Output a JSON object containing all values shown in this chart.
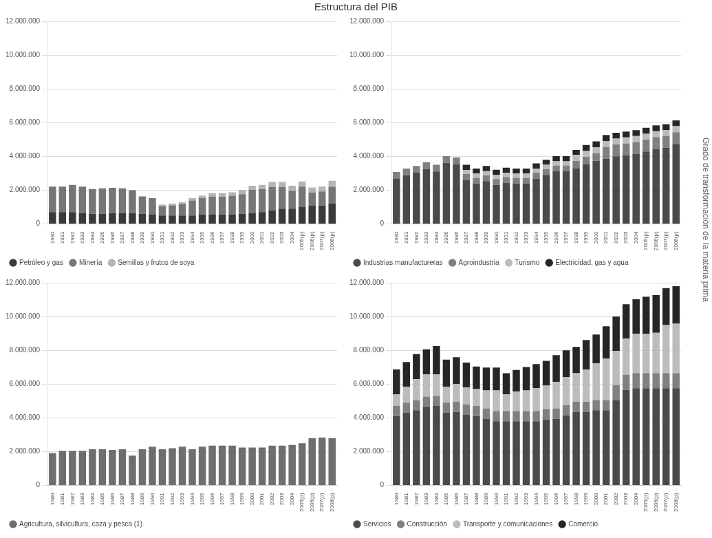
{
  "chart_data": [
    {
      "type": "bar",
      "title": "Estructura del PIB",
      "stacked": true,
      "grid": "y",
      "legend": "bottom left",
      "categories": [
        "1980",
        "1981",
        "1982",
        "1983",
        "1984",
        "1985",
        "1986",
        "1987",
        "1988",
        "1989",
        "1990",
        "1991",
        "1992",
        "1993",
        "1994",
        "1995",
        "1996",
        "1997",
        "1998",
        "1999",
        "2000",
        "2001",
        "2002",
        "2003",
        "2004",
        "2005(p)",
        "2006(p)",
        "2007(p)",
        "2008(p)"
      ],
      "ylim": [
        0,
        12000000
      ],
      "yticks": [
        {
          "value": 0,
          "label": "0"
        },
        {
          "value": 2000000,
          "label": "2.000.000"
        },
        {
          "value": 4000000,
          "label": "4.000.000"
        },
        {
          "value": 6000000,
          "label": "6.000.000"
        },
        {
          "value": 8000000,
          "label": "8.000.000"
        },
        {
          "value": 10000000,
          "label": "10.000.000"
        },
        {
          "value": 12000000,
          "label": "12.000.000"
        }
      ],
      "series": [
        {
          "name": "Petróleo y gas",
          "color": "#3a3a3a",
          "values": [
            700000,
            700000,
            700000,
            650000,
            600000,
            600000,
            650000,
            650000,
            650000,
            600000,
            550000,
            500000,
            500000,
            500000,
            500000,
            550000,
            550000,
            550000,
            550000,
            600000,
            650000,
            700000,
            800000,
            900000,
            900000,
            1000000,
            1100000,
            1100000,
            1200000
          ]
        },
        {
          "name": "Minería",
          "color": "#767676",
          "values": [
            1510000,
            1510000,
            1610000,
            1560000,
            1470000,
            1510000,
            1490000,
            1460000,
            1340000,
            1030000,
            980000,
            540000,
            600000,
            680000,
            880000,
            980000,
            1070000,
            1070000,
            1120000,
            1160000,
            1360000,
            1360000,
            1380000,
            1280000,
            1060000,
            1210000,
            760000,
            820000,
            1000000
          ]
        },
        {
          "name": "Semillas y frutos de soya",
          "color": "#b4b4b4",
          "values": [
            null,
            null,
            null,
            null,
            null,
            null,
            null,
            null,
            null,
            null,
            null,
            100000,
            100000,
            100000,
            150000,
            150000,
            200000,
            200000,
            200000,
            250000,
            250000,
            250000,
            300000,
            300000,
            300000,
            300000,
            300000,
            300000,
            350000
          ]
        }
      ]
    },
    {
      "type": "bar",
      "stacked": true,
      "grid": "y",
      "legend": "bottom left",
      "annotations": [
        "Grado de transformación de la materia prima"
      ],
      "categories": [
        "1980",
        "1981",
        "1982",
        "1983",
        "1984",
        "1985",
        "1986",
        "1987",
        "1988",
        "1989",
        "1990",
        "1991",
        "1992",
        "1993",
        "1994",
        "1995",
        "1996",
        "1997",
        "1998",
        "1999",
        "2000",
        "2001",
        "2002",
        "2003",
        "2004",
        "2005(p)",
        "2006(p)",
        "2007(p)",
        "2008(p)"
      ],
      "ylim": [
        0,
        12000000
      ],
      "yticks": [
        {
          "value": 0,
          "label": "0"
        },
        {
          "value": 2000000,
          "label": "2.000.000"
        },
        {
          "value": 4000000,
          "label": "4.000.000"
        },
        {
          "value": 6000000,
          "label": "6.000.000"
        },
        {
          "value": 8000000,
          "label": "8.000.000"
        },
        {
          "value": 10000000,
          "label": "10.000.000"
        },
        {
          "value": 12000000,
          "label": "12.000.000"
        }
      ],
      "series": [
        {
          "name": "Industrias manufactureras",
          "color": "#4a4a4a",
          "values": [
            2670000,
            2880000,
            3030000,
            3250000,
            3100000,
            3610000,
            3540000,
            2600000,
            2380000,
            2530000,
            2310000,
            2430000,
            2380000,
            2380000,
            2680000,
            2900000,
            3110000,
            3110000,
            3280000,
            3520000,
            3740000,
            3860000,
            4000000,
            4070000,
            4150000,
            4290000,
            4440000,
            4510000,
            4730000
          ]
        },
        {
          "name": "Agroindustria",
          "color": "#808080",
          "values": [
            400000,
            400000,
            400000,
            400000,
            400000,
            400000,
            400000,
            350000,
            350000,
            350000,
            350000,
            350000,
            350000,
            350000,
            350000,
            350000,
            350000,
            350000,
            450000,
            450000,
            450000,
            700000,
            700000,
            700000,
            700000,
            700000,
            700000,
            700000,
            700000
          ]
        },
        {
          "name": "Turismo",
          "color": "#bcbcbc",
          "values": [
            null,
            null,
            null,
            null,
            null,
            null,
            null,
            250000,
            250000,
            250000,
            250000,
            250000,
            250000,
            250000,
            250000,
            250000,
            250000,
            250000,
            350000,
            350000,
            350000,
            350000,
            350000,
            350000,
            350000,
            350000,
            350000,
            350000,
            350000
          ]
        },
        {
          "name": "Electricidad, gas y agua",
          "color": "#262626",
          "values": [
            null,
            null,
            null,
            null,
            null,
            null,
            null,
            300000,
            300000,
            300000,
            300000,
            300000,
            300000,
            300000,
            300000,
            300000,
            300000,
            300000,
            300000,
            350000,
            350000,
            350000,
            350000,
            350000,
            350000,
            350000,
            350000,
            350000,
            350000
          ]
        }
      ]
    },
    {
      "type": "bar",
      "stacked": true,
      "grid": "y",
      "legend": "bottom left",
      "categories": [
        "1980",
        "1981",
        "1982",
        "1983",
        "1984",
        "1985",
        "1986",
        "1987",
        "1988",
        "1989",
        "1990",
        "1991",
        "1992",
        "1993",
        "1994",
        "1995",
        "1996",
        "1997",
        "1998",
        "1999",
        "2000",
        "2001",
        "2002",
        "2003",
        "2004",
        "2005(p)",
        "2006(p)",
        "2007(p)",
        "2008(p)"
      ],
      "ylim": [
        0,
        12000000
      ],
      "yticks": [
        {
          "value": 0,
          "label": "0"
        },
        {
          "value": 2000000,
          "label": "2.000.000"
        },
        {
          "value": 4000000,
          "label": "4.000.000"
        },
        {
          "value": 6000000,
          "label": "6.000.000"
        },
        {
          "value": 8000000,
          "label": "8.000.000"
        },
        {
          "value": 10000000,
          "label": "10.000.000"
        },
        {
          "value": 12000000,
          "label": "12.000.000"
        }
      ],
      "series": [
        {
          "name": "Agricultura, silvicultura, caza y pesca (1)",
          "color": "#6e6e6e",
          "values": [
            1910000,
            2050000,
            2050000,
            2050000,
            2140000,
            2140000,
            2100000,
            2140000,
            1760000,
            2140000,
            2290000,
            2140000,
            2200000,
            2290000,
            2140000,
            2290000,
            2350000,
            2350000,
            2350000,
            2240000,
            2240000,
            2240000,
            2350000,
            2350000,
            2390000,
            2490000,
            2790000,
            2830000,
            2790000
          ]
        }
      ]
    },
    {
      "type": "bar",
      "stacked": true,
      "grid": "y",
      "legend": "bottom left",
      "categories": [
        "1980",
        "1981",
        "1982",
        "1983",
        "1984",
        "1985",
        "1986",
        "1987",
        "1988",
        "1989",
        "1990",
        "1991",
        "1992",
        "1993",
        "1994",
        "1995",
        "1996",
        "1997",
        "1998",
        "1999",
        "2000",
        "2001",
        "2002",
        "2003",
        "2004",
        "2005(p)",
        "2006(p)",
        "2007(p)",
        "2008(p)"
      ],
      "ylim": [
        0,
        12000000
      ],
      "yticks": [
        {
          "value": 0,
          "label": "0"
        },
        {
          "value": 2000000,
          "label": "2.000.000"
        },
        {
          "value": 4000000,
          "label": "4.000.000"
        },
        {
          "value": 6000000,
          "label": "6.000.000"
        },
        {
          "value": 8000000,
          "label": "8.000.000"
        },
        {
          "value": 10000000,
          "label": "10.000.000"
        },
        {
          "value": 12000000,
          "label": "12.000.000"
        }
      ],
      "series": [
        {
          "name": "Servicios",
          "color": "#4a4a4a",
          "values": [
            4100000,
            4300000,
            4450000,
            4650000,
            4700000,
            4300000,
            4350000,
            4200000,
            4100000,
            3950000,
            3800000,
            3800000,
            3800000,
            3800000,
            3800000,
            3900000,
            3950000,
            4150000,
            4350000,
            4350000,
            4450000,
            4450000,
            5050000,
            5650000,
            5750000,
            5750000,
            5750000,
            5750000,
            5750000
          ]
        },
        {
          "name": "Construcción",
          "color": "#808080",
          "values": [
            600000,
            600000,
            600000,
            600000,
            600000,
            600000,
            600000,
            600000,
            600000,
            600000,
            600000,
            600000,
            600000,
            600000,
            600000,
            600000,
            600000,
            600000,
            600000,
            600000,
            600000,
            600000,
            900000,
            900000,
            900000,
            900000,
            900000,
            900000,
            900000
          ]
        },
        {
          "name": "Transporte y comunicaciones",
          "color": "#bcbcbc",
          "values": [
            700000,
            940000,
            1230000,
            1320000,
            1270000,
            940000,
            1060000,
            1010000,
            1000000,
            1070000,
            1220000,
            1000000,
            1150000,
            1220000,
            1360000,
            1410000,
            1580000,
            1670000,
            1690000,
            1910000,
            2170000,
            2470000,
            2010000,
            2140000,
            2330000,
            2330000,
            2390000,
            2840000,
            2920000
          ]
        },
        {
          "name": "Comercio",
          "color": "#262626",
          "values": [
            1460000,
            1460000,
            1490000,
            1490000,
            1680000,
            1610000,
            1580000,
            1460000,
            1340000,
            1360000,
            1360000,
            1240000,
            1280000,
            1390000,
            1420000,
            1460000,
            1580000,
            1580000,
            1560000,
            1750000,
            1710000,
            1900000,
            2040000,
            2040000,
            2040000,
            2190000,
            2230000,
            2190000,
            2230000
          ]
        }
      ]
    }
  ]
}
